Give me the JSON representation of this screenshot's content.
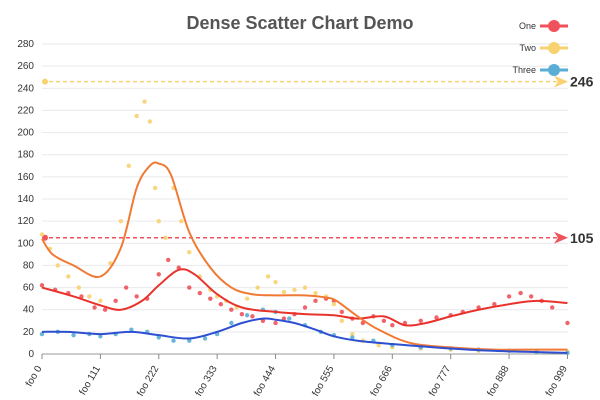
{
  "chart_data": {
    "type": "scatter",
    "title": "Dense Scatter Chart Demo",
    "xlabel": "",
    "ylabel": "",
    "x_index_range": [
      0,
      1000
    ],
    "x_tick_labels": [
      "foo 0",
      "foo 111",
      "foo 222",
      "foo 333",
      "foo 444",
      "foo 555",
      "foo 666",
      "foo 777",
      "foo 888",
      "foo 999"
    ],
    "x_tick_indices": [
      0,
      111,
      222,
      333,
      444,
      555,
      666,
      777,
      888,
      999
    ],
    "ylim": [
      0,
      280
    ],
    "y_ticks": [
      0,
      20,
      40,
      60,
      80,
      100,
      120,
      140,
      160,
      180,
      200,
      220,
      240,
      260,
      280
    ],
    "grid": true,
    "legend": "top-right",
    "series": [
      {
        "name": "One",
        "color": "#f0525b",
        "points": [
          [
            0,
            62
          ],
          [
            25,
            58
          ],
          [
            50,
            55
          ],
          [
            75,
            52
          ],
          [
            100,
            42
          ],
          [
            120,
            40
          ],
          [
            140,
            48
          ],
          [
            160,
            60
          ],
          [
            180,
            52
          ],
          [
            200,
            50
          ],
          [
            222,
            72
          ],
          [
            240,
            85
          ],
          [
            260,
            78
          ],
          [
            280,
            60
          ],
          [
            300,
            55
          ],
          [
            320,
            50
          ],
          [
            340,
            45
          ],
          [
            360,
            40
          ],
          [
            380,
            36
          ],
          [
            400,
            34
          ],
          [
            420,
            30
          ],
          [
            444,
            28
          ],
          [
            460,
            32
          ],
          [
            480,
            36
          ],
          [
            500,
            42
          ],
          [
            520,
            48
          ],
          [
            540,
            50
          ],
          [
            555,
            48
          ],
          [
            570,
            38
          ],
          [
            590,
            32
          ],
          [
            610,
            28
          ],
          [
            630,
            34
          ],
          [
            650,
            30
          ],
          [
            666,
            26
          ],
          [
            690,
            28
          ],
          [
            720,
            30
          ],
          [
            750,
            33
          ],
          [
            777,
            35
          ],
          [
            800,
            38
          ],
          [
            830,
            42
          ],
          [
            860,
            45
          ],
          [
            888,
            52
          ],
          [
            910,
            55
          ],
          [
            930,
            52
          ],
          [
            950,
            48
          ],
          [
            970,
            42
          ],
          [
            999,
            28
          ]
        ],
        "trend": [
          [
            0,
            60
          ],
          [
            60,
            52
          ],
          [
            111,
            44
          ],
          [
            150,
            40
          ],
          [
            190,
            48
          ],
          [
            222,
            62
          ],
          [
            260,
            76
          ],
          [
            290,
            72
          ],
          [
            333,
            54
          ],
          [
            380,
            42
          ],
          [
            444,
            38
          ],
          [
            500,
            36
          ],
          [
            555,
            35
          ],
          [
            600,
            32
          ],
          [
            650,
            34
          ],
          [
            690,
            26
          ],
          [
            730,
            28
          ],
          [
            777,
            34
          ],
          [
            830,
            40
          ],
          [
            888,
            45
          ],
          [
            940,
            48
          ],
          [
            999,
            46
          ]
        ]
      },
      {
        "name": "Two",
        "color": "#f8d270",
        "points": [
          [
            0,
            108
          ],
          [
            15,
            95
          ],
          [
            30,
            80
          ],
          [
            50,
            70
          ],
          [
            70,
            60
          ],
          [
            90,
            52
          ],
          [
            111,
            48
          ],
          [
            130,
            82
          ],
          [
            150,
            120
          ],
          [
            165,
            170
          ],
          [
            180,
            215
          ],
          [
            195,
            228
          ],
          [
            205,
            210
          ],
          [
            215,
            150
          ],
          [
            222,
            120
          ],
          [
            235,
            105
          ],
          [
            250,
            150
          ],
          [
            265,
            120
          ],
          [
            280,
            92
          ],
          [
            300,
            70
          ],
          [
            320,
            58
          ],
          [
            333,
            52
          ],
          [
            350,
            48
          ],
          [
            370,
            42
          ],
          [
            390,
            50
          ],
          [
            410,
            60
          ],
          [
            430,
            70
          ],
          [
            444,
            65
          ],
          [
            460,
            56
          ],
          [
            480,
            58
          ],
          [
            500,
            60
          ],
          [
            520,
            55
          ],
          [
            540,
            52
          ],
          [
            555,
            45
          ],
          [
            570,
            30
          ],
          [
            590,
            18
          ],
          [
            610,
            12
          ],
          [
            640,
            8
          ],
          [
            666,
            6
          ],
          [
            720,
            5
          ],
          [
            777,
            4
          ],
          [
            830,
            3
          ],
          [
            888,
            3
          ],
          [
            940,
            2
          ],
          [
            999,
            2
          ]
        ],
        "trend": [
          [
            0,
            104
          ],
          [
            20,
            90
          ],
          [
            60,
            80
          ],
          [
            111,
            70
          ],
          [
            150,
            96
          ],
          [
            180,
            150
          ],
          [
            205,
            170
          ],
          [
            222,
            172
          ],
          [
            245,
            162
          ],
          [
            280,
            110
          ],
          [
            320,
            78
          ],
          [
            360,
            60
          ],
          [
            400,
            54
          ],
          [
            444,
            53
          ],
          [
            500,
            53
          ],
          [
            540,
            51
          ],
          [
            560,
            48
          ],
          [
            600,
            34
          ],
          [
            640,
            22
          ],
          [
            700,
            10
          ],
          [
            777,
            6
          ],
          [
            860,
            4
          ],
          [
            940,
            4
          ],
          [
            999,
            4
          ]
        ]
      },
      {
        "name": "Three",
        "color": "#5aaed6",
        "points": [
          [
            0,
            18
          ],
          [
            30,
            20
          ],
          [
            60,
            17
          ],
          [
            90,
            18
          ],
          [
            111,
            16
          ],
          [
            140,
            18
          ],
          [
            170,
            22
          ],
          [
            200,
            20
          ],
          [
            222,
            15
          ],
          [
            250,
            12
          ],
          [
            280,
            12
          ],
          [
            310,
            14
          ],
          [
            333,
            18
          ],
          [
            360,
            28
          ],
          [
            390,
            35
          ],
          [
            420,
            40
          ],
          [
            444,
            38
          ],
          [
            470,
            32
          ],
          [
            500,
            26
          ],
          [
            530,
            20
          ],
          [
            555,
            17
          ],
          [
            590,
            15
          ],
          [
            630,
            12
          ],
          [
            666,
            8
          ],
          [
            720,
            6
          ],
          [
            777,
            5
          ],
          [
            830,
            4
          ],
          [
            888,
            3
          ],
          [
            940,
            2
          ],
          [
            999,
            1
          ]
        ],
        "trend": [
          [
            0,
            20
          ],
          [
            50,
            20
          ],
          [
            111,
            18
          ],
          [
            170,
            20
          ],
          [
            222,
            17
          ],
          [
            280,
            14
          ],
          [
            333,
            20
          ],
          [
            380,
            28
          ],
          [
            420,
            32
          ],
          [
            444,
            31
          ],
          [
            480,
            28
          ],
          [
            520,
            22
          ],
          [
            555,
            16
          ],
          [
            600,
            12
          ],
          [
            666,
            9
          ],
          [
            720,
            7
          ],
          [
            777,
            5
          ],
          [
            850,
            3
          ],
          [
            920,
            2
          ],
          [
            999,
            1
          ]
        ]
      }
    ],
    "marker_lines": [
      {
        "value": 246,
        "label": "246",
        "series": "Two",
        "color": "#f8d270"
      },
      {
        "value": 105,
        "label": "105",
        "series": "One",
        "color": "#f0525b"
      }
    ]
  }
}
